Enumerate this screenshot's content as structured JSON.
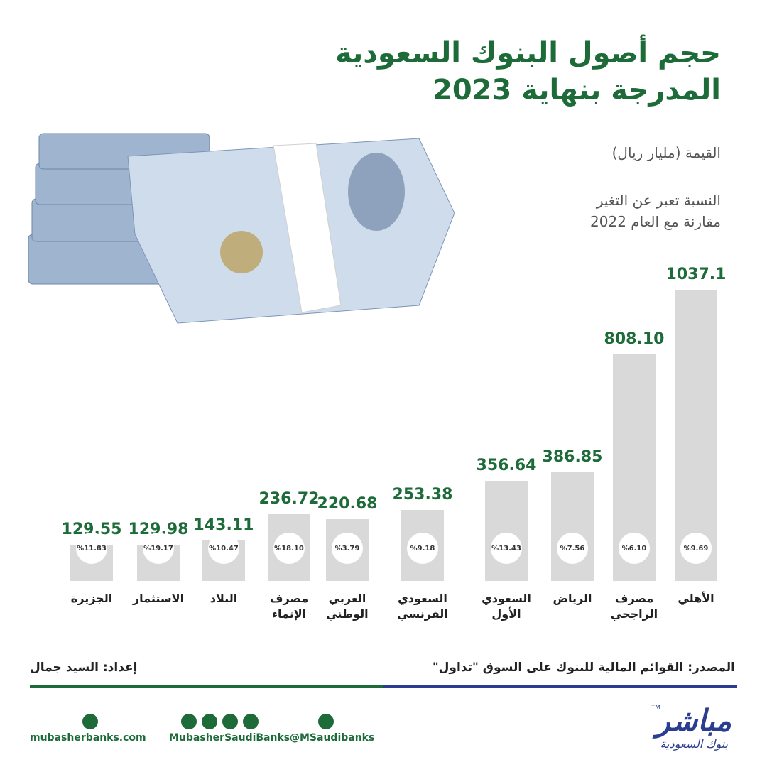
{
  "chart_data": {
    "type": "bar",
    "title": [
      "حجم أصول البنوك السعودية",
      "المدرجة بنهاية 2023"
    ],
    "unit_note": "القيمة (مليار ريال)",
    "change_note": [
      "النسبة تعبر عن التغير",
      "مقارنة مع العام 2022"
    ],
    "categories": [
      "الجزيرة",
      "الاستثمار",
      "البلاد",
      "مصرف الإنماء",
      "العربي الوطني",
      "السعودي الفرنسي",
      "السعودي الأول",
      "الرياض",
      "مصرف الراجحي",
      "الأهلي"
    ],
    "values": [
      129.55,
      129.98,
      143.11,
      236.72,
      220.68,
      253.38,
      356.64,
      386.85,
      808.1,
      1037.1
    ],
    "value_labels": [
      "129.55",
      "129.98",
      "143.11",
      "236.72",
      "220.68",
      "253.38",
      "356.64",
      "386.85",
      "808.10",
      "1037.1"
    ],
    "change_labels": [
      "%11.83",
      "%19.17",
      "%10.47",
      "%18.10",
      "%3.79",
      "%9.18",
      "%13.43",
      "%7.56",
      "%6.10",
      "%9.69"
    ],
    "color": "#d9d9d9",
    "label_color": "#1e6b3a"
  },
  "footer": {
    "source": "المصدر: القوائم المالية للبنوك على السوق \"تداول\"",
    "author": "إعداد: السيد جمال",
    "website": "mubasherbanks.com",
    "social": "MubasherSaudiBanks",
    "twitter": "@MSaudibanks",
    "logo": "مباشر",
    "logo_sub": "بنوك السعودية",
    "tm": "TM"
  }
}
